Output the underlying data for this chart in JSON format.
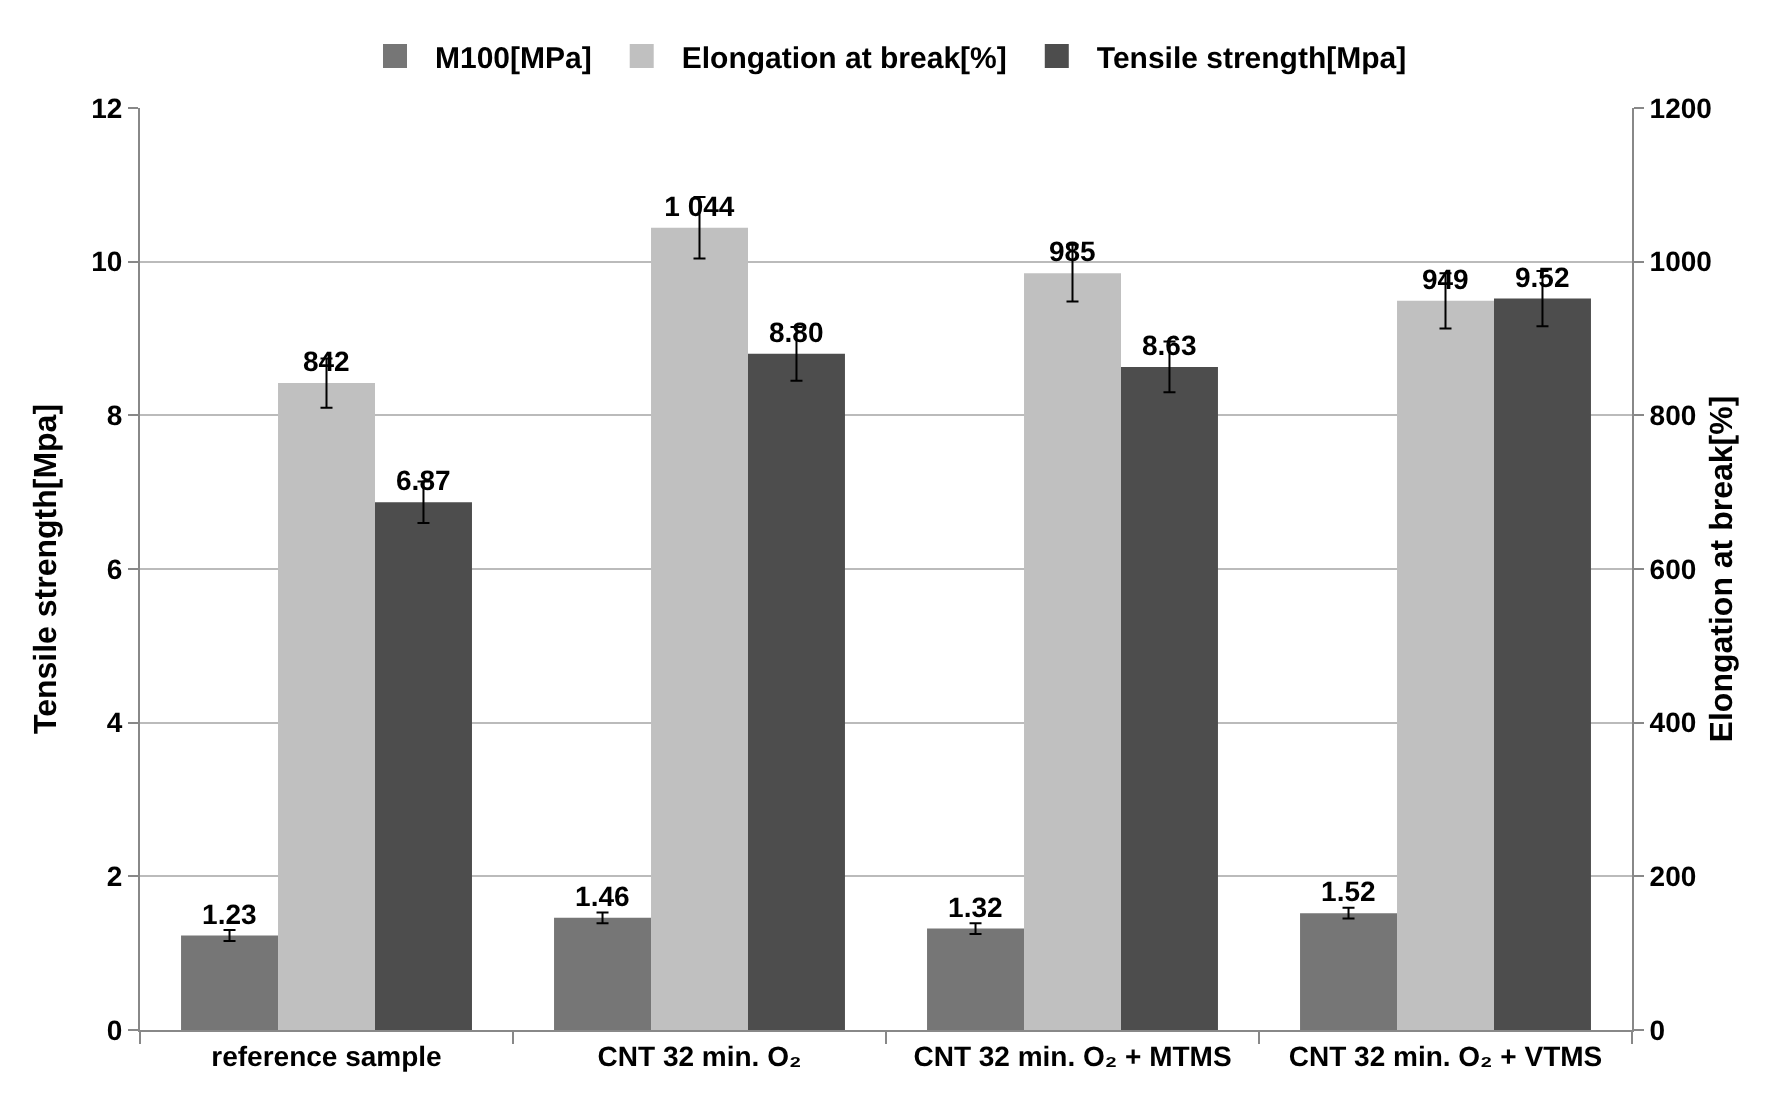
{
  "chart_data": {
    "type": "bar",
    "categories": [
      "reference sample",
      "CNT 32 min. O₂",
      "CNT 32 min. O₂ + MTMS",
      "CNT 32 min. O₂ + VTMS"
    ],
    "series": [
      {
        "name": "M100[MPa]",
        "color": "#767676",
        "values": [
          1.23,
          1.46,
          1.32,
          1.52
        ],
        "errors": [
          0.07,
          0.07,
          0.07,
          0.07
        ],
        "value_labels": [
          "1.23",
          "1.46",
          "1.32",
          "1.52"
        ]
      },
      {
        "name": "Elongation at break[%]",
        "color": "#c0c0c0",
        "axis": "y2",
        "values": [
          842,
          1044,
          985,
          949
        ],
        "errors": [
          32,
          40,
          37,
          36
        ],
        "value_labels": [
          "842",
          "1 044",
          "985",
          "949"
        ]
      },
      {
        "name": "Tensile strength[Mpa]",
        "color": "#4d4d4d",
        "values": [
          6.87,
          8.8,
          8.63,
          9.52
        ],
        "errors": [
          0.27,
          0.35,
          0.33,
          0.36
        ],
        "value_labels": [
          "6.87",
          "8.80",
          "8.63",
          "9.52"
        ]
      }
    ],
    "ylabel": "Tensile strength[Mpa]",
    "y2label": "Elongation at break[%]",
    "ylim": [
      0,
      12
    ],
    "yticks": [
      0,
      2,
      4,
      6,
      8,
      10,
      12
    ],
    "y2lim": [
      0,
      1200
    ],
    "y2ticks": [
      0,
      200,
      400,
      600,
      800,
      1000,
      1200
    ],
    "grid": "y",
    "legend": "top"
  }
}
